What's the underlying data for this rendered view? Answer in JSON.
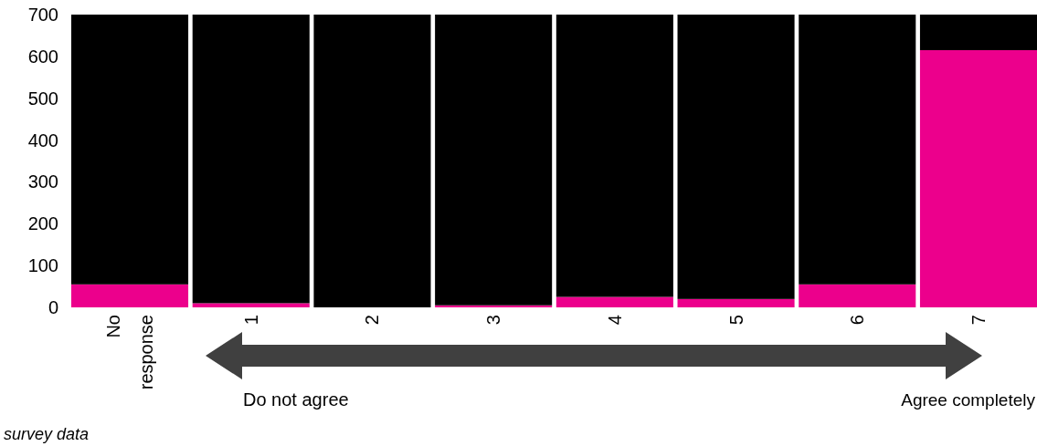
{
  "chart_data": {
    "type": "bar",
    "stacked": true,
    "categories": [
      "No response",
      "1",
      "2",
      "3",
      "4",
      "5",
      "6",
      "7"
    ],
    "series": [
      {
        "color": "#ec008c",
        "values": [
          55,
          10,
          0,
          5,
          25,
          20,
          55,
          615
        ]
      },
      {
        "color": "#000000",
        "values": [
          645,
          690,
          700,
          695,
          675,
          680,
          645,
          85
        ]
      }
    ],
    "ylim": [
      0,
      700
    ],
    "yticks": [
      0,
      100,
      200,
      300,
      400,
      500,
      600,
      700
    ],
    "grid": false,
    "annotations": [
      "Do not agree",
      "Agree completely",
      "survey data"
    ]
  }
}
